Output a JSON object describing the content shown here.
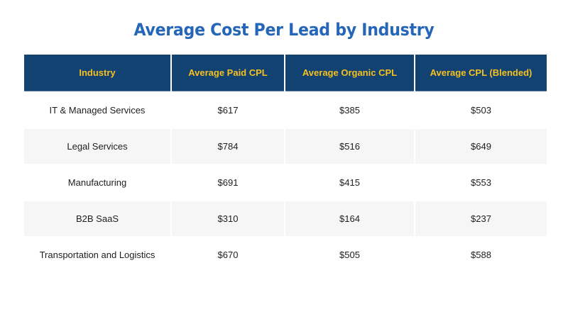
{
  "title": "Average Cost Per Lead by Industry",
  "colors": {
    "title": "#2566b8",
    "header_bg": "#124272",
    "header_text": "#f5c020",
    "alt_row_bg": "#f6f6f6"
  },
  "table": {
    "headers": [
      "Industry",
      "Average Paid CPL",
      "Average Organic CPL",
      "Average CPL (Blended)"
    ],
    "rows": [
      [
        "IT & Managed Services",
        "$617",
        "$385",
        "$503"
      ],
      [
        "Legal Services",
        "$784",
        "$516",
        "$649"
      ],
      [
        "Manufacturing",
        "$691",
        "$415",
        "$553"
      ],
      [
        "B2B SaaS",
        "$310",
        "$164",
        "$237"
      ],
      [
        "Transportation and Logistics",
        "$670",
        "$505",
        "$588"
      ]
    ]
  }
}
